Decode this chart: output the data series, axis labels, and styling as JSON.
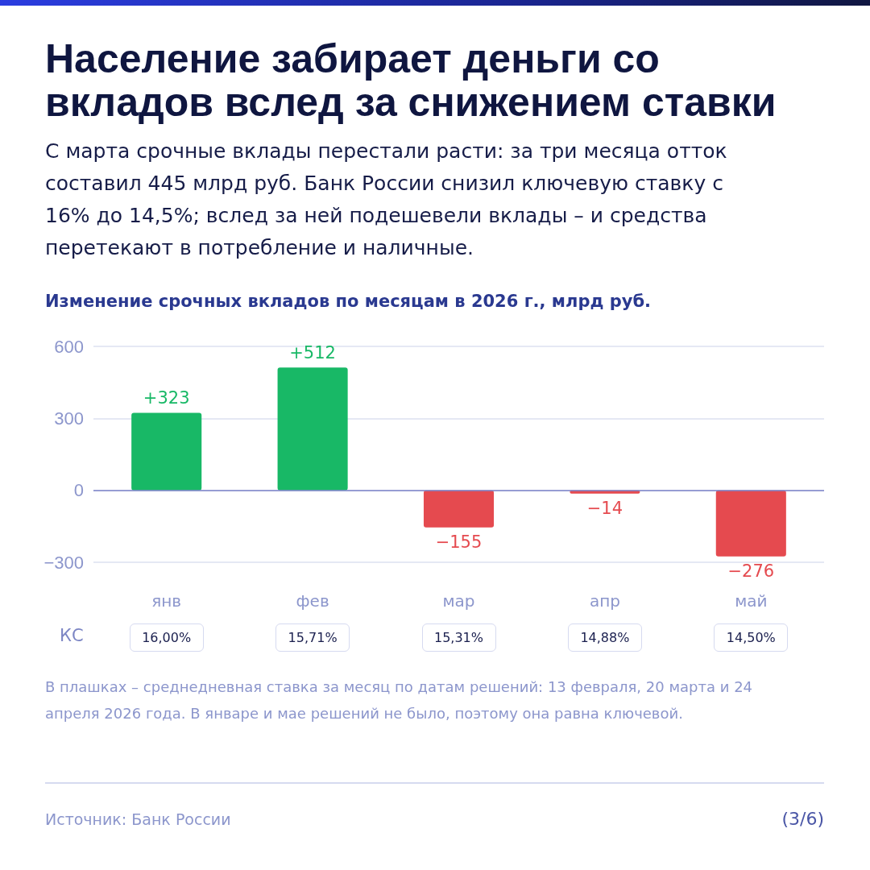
{
  "chart_data": {
    "type": "bar",
    "title": "Население забирает деньги со вкладов вслед за снижением ставки",
    "subtitle": "С марта срочные вклады перестали расти: за три месяца отток составил 445 млрд руб. Банк России снизил ключевую ставку с 16% до 14,5%; вслед за ней подешевели вклады – и средства перетекают в потребление и наличные.",
    "ylabel": "Изменение срочных вкладов по месяцам в 2026 г., млрд руб.",
    "categories": [
      "янв",
      "фев",
      "мар",
      "апр",
      "май"
    ],
    "values": [
      323,
      512,
      -155,
      -14,
      -276
    ],
    "colors": [
      "#18b866",
      "#18b866",
      "#e54a4f",
      "#e54a4f",
      "#e54a4f"
    ],
    "value_labels": [
      "+323",
      "+512",
      "−155",
      "−14",
      "−276"
    ],
    "ylim": [
      -300,
      600
    ],
    "yticks": [
      {
        "value": -300,
        "label": "−300"
      },
      0,
      300,
      600
    ],
    "grid": "y",
    "ref_lines": [
      {
        "axis": "y",
        "value": 0,
        "color": "#7b85c9"
      }
    ],
    "annotations": [
      "КС",
      "16,00%",
      "15,71%",
      "15,31%",
      "14,88%",
      "14,50%",
      "В плашках – среднедневная ставка за месяц по датам решений: 13 февраля, 20 марта и 24 апреля 2026 года. В январе и мае решений не было, поэтому она равна ключевой.",
      "Источник: Банк России",
      "(3/6)"
    ]
  }
}
